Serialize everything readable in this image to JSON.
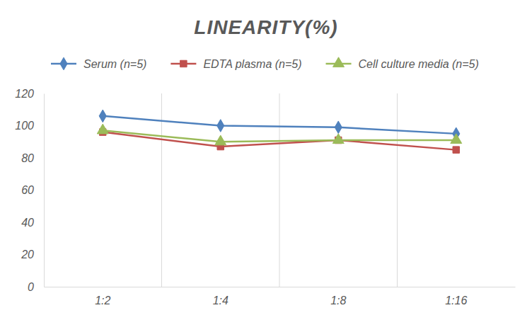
{
  "chart_data": {
    "type": "line",
    "title": "LINEARITY(%)",
    "categories": [
      "1:2",
      "1:4",
      "1:8",
      "1:16"
    ],
    "series": [
      {
        "name": "Serum (n=5)",
        "color": "#4f81bd",
        "marker": "diamond",
        "values": [
          106,
          100,
          99,
          95
        ]
      },
      {
        "name": "EDTA plasma (n=5)",
        "color": "#c0504d",
        "marker": "square",
        "values": [
          96,
          87,
          91,
          85
        ]
      },
      {
        "name": "Cell culture media (n=5)",
        "color": "#9bbb59",
        "marker": "triangle",
        "values": [
          97,
          90,
          91,
          91
        ]
      }
    ],
    "ylim": [
      0,
      120
    ],
    "yticks": [
      0,
      20,
      40,
      60,
      80,
      100,
      120
    ],
    "grid": true,
    "legend": "top"
  }
}
